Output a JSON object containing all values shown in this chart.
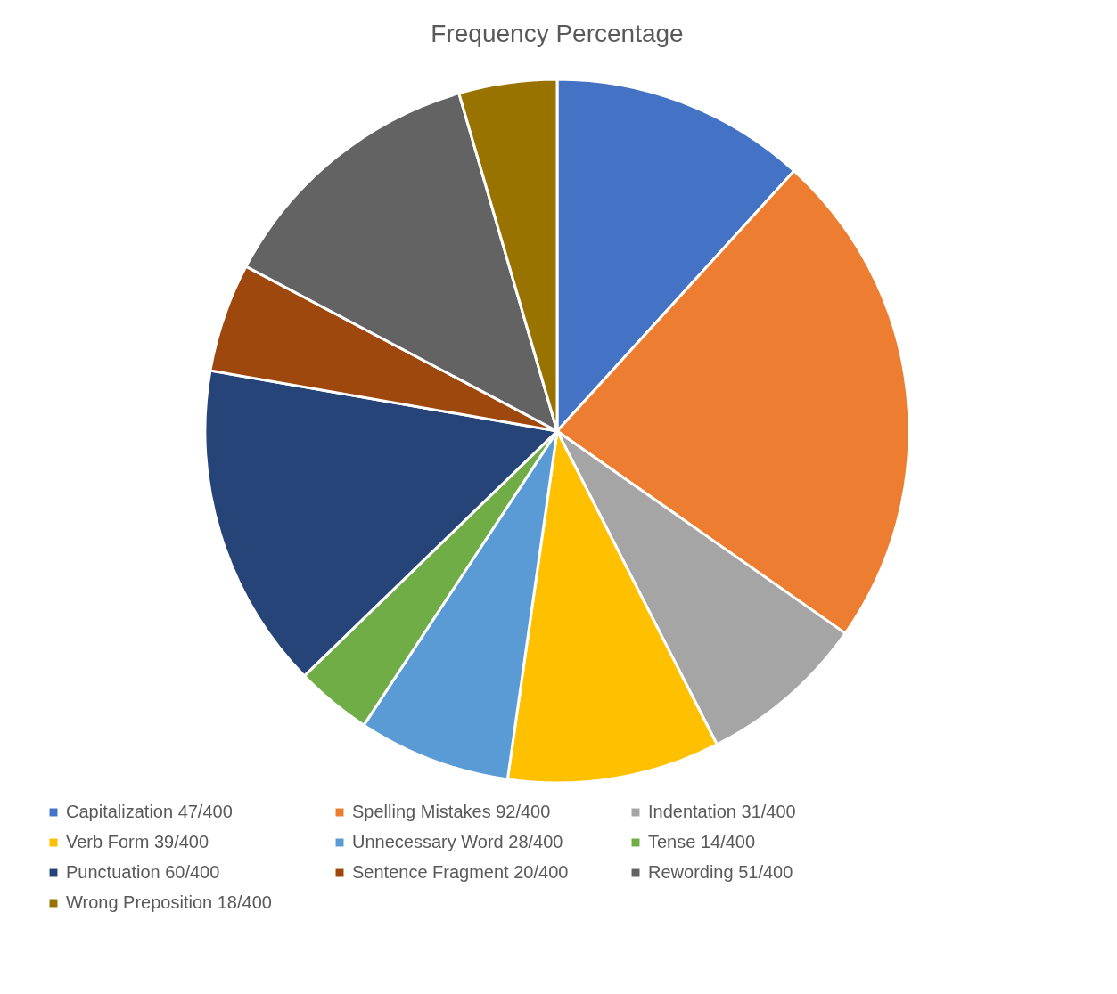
{
  "chart_data": {
    "type": "pie",
    "title": "Frequency Percentage",
    "categories": [
      "Capitalization  47/400",
      "Spelling Mistakes  92/400",
      "Indentation  31/400",
      "Verb Form 39/400",
      "Unnecessary Word 28/400",
      "Tense 14/400",
      "Punctuation  60/400",
      "Sentence Fragment  20/400",
      "Rewording  51/400",
      "Wrong Preposition  18/400"
    ],
    "values": [
      47,
      92,
      31,
      39,
      28,
      14,
      60,
      20,
      51,
      18
    ],
    "colors": [
      "#4472c4",
      "#ed7d31",
      "#a5a5a5",
      "#ffc000",
      "#5b9bd5",
      "#70ad47",
      "#264478",
      "#9e480e",
      "#636363",
      "#997300"
    ],
    "legend": "bottom"
  }
}
